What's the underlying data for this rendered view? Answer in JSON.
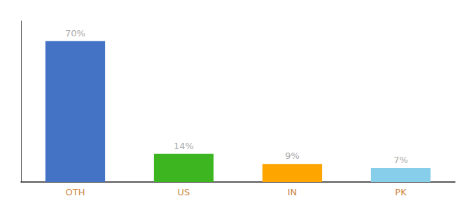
{
  "chart_data": {
    "type": "bar",
    "categories": [
      "OTH",
      "US",
      "IN",
      "PK"
    ],
    "values": [
      70,
      14,
      9,
      7
    ],
    "value_labels": [
      "70%",
      "14%",
      "9%",
      "7%"
    ],
    "colors": [
      "#4472C4",
      "#3CB520",
      "#FFA500",
      "#87CEEB"
    ],
    "ylim": [
      0,
      80
    ],
    "data_labels": true,
    "tick_labels": "x",
    "grid": false
  }
}
